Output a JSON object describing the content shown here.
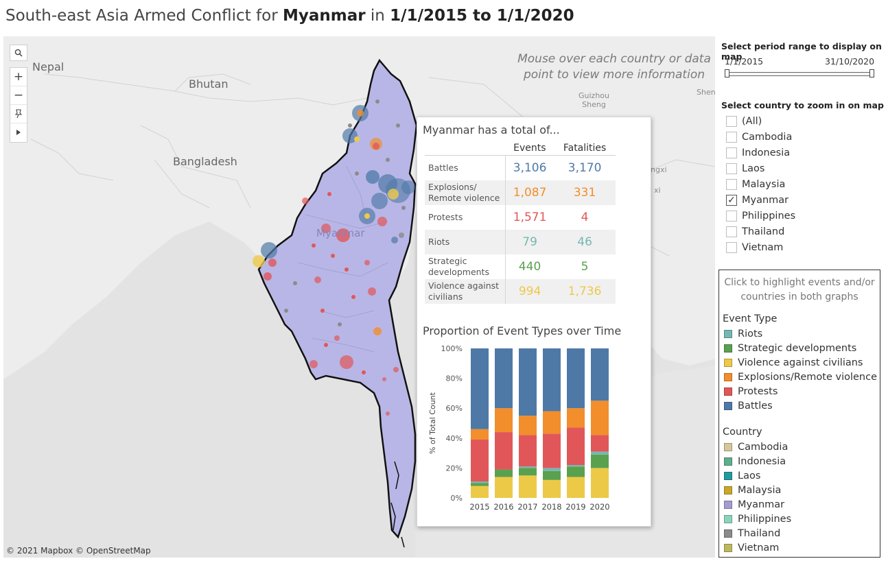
{
  "title": {
    "prefix": "South-east Asia Armed Conflict for ",
    "country": "Myanmar",
    "middle": " in ",
    "range": "1/1/2015 to 1/1/2020"
  },
  "map": {
    "hint": "Mouse over each country or data point to view more information",
    "attribution": "© 2021 Mapbox © OpenStreetMap",
    "labels": {
      "nepal": "Nepal",
      "bhutan": "Bhutan",
      "bangladesh": "Bangladesh",
      "myanmar": "Myanmar",
      "guizhou": "Guizhou\nSheng",
      "shen": "Shen",
      "ngxi": "ngxi",
      "xi": "xi"
    },
    "tools": [
      "search-icon",
      "zoom-in-icon",
      "zoom-out-icon",
      "pin-icon",
      "play-icon"
    ],
    "region_color": "#b8b6e6",
    "border_color": "#111111"
  },
  "info": {
    "title": "Myanmar has a total of...",
    "col_events": "Events",
    "col_fatalities": "Fatalities",
    "rows": [
      {
        "label1": "Battles",
        "label2": "",
        "events": "3,106",
        "fatalities": "3,170",
        "color": "#4e79a7"
      },
      {
        "label1": "Explosions/",
        "label2": "Remote violence",
        "events": "1,087",
        "fatalities": "331",
        "color": "#f28e2b"
      },
      {
        "label1": "Protests",
        "label2": "",
        "events": "1,571",
        "fatalities": "4",
        "color": "#e15759"
      },
      {
        "label1": "Riots",
        "label2": "",
        "events": "79",
        "fatalities": "46",
        "color": "#76b7b2"
      },
      {
        "label1": "Strategic",
        "label2": "developments",
        "events": "440",
        "fatalities": "5",
        "color": "#59a14f"
      },
      {
        "label1": "Violence against",
        "label2": "civilians",
        "events": "994",
        "fatalities": "1,736",
        "color": "#edc948"
      }
    ]
  },
  "chart_data": {
    "type": "bar",
    "stacked": true,
    "title": "Proportion of Event Types over Time",
    "ylabel": "% of Total Count",
    "xlabel": "",
    "ylim": [
      0,
      100
    ],
    "yticks": [
      "0%",
      "20%",
      "40%",
      "60%",
      "80%",
      "100%"
    ],
    "categories": [
      "2015",
      "2016",
      "2017",
      "2018",
      "2019",
      "2020"
    ],
    "series": [
      {
        "name": "Violence against civilians",
        "color": "#edc948",
        "values": [
          8,
          14,
          15,
          12,
          14,
          20
        ]
      },
      {
        "name": "Strategic developments",
        "color": "#59a14f",
        "values": [
          2,
          5,
          5,
          6,
          7,
          9
        ]
      },
      {
        "name": "Riots",
        "color": "#76b7b2",
        "values": [
          1,
          0,
          1,
          2,
          1,
          2
        ]
      },
      {
        "name": "Protests",
        "color": "#e15759",
        "values": [
          28,
          25,
          21,
          23,
          25,
          11
        ]
      },
      {
        "name": "Explosions/Remote violence",
        "color": "#f28e2b",
        "values": [
          7,
          16,
          13,
          15,
          13,
          23
        ]
      },
      {
        "name": "Battles",
        "color": "#4e79a7",
        "values": [
          54,
          40,
          45,
          42,
          40,
          35
        ]
      }
    ]
  },
  "period": {
    "title": "Select period range to display on map",
    "start": "1/1/2015",
    "end": "31/10/2020"
  },
  "country_filter": {
    "title": "Select country to zoom in on map",
    "options": [
      {
        "label": "(All)",
        "checked": false
      },
      {
        "label": "Cambodia",
        "checked": false
      },
      {
        "label": "Indonesia",
        "checked": false
      },
      {
        "label": "Laos",
        "checked": false
      },
      {
        "label": "Malaysia",
        "checked": false
      },
      {
        "label": "Myanmar",
        "checked": true
      },
      {
        "label": "Philippines",
        "checked": false
      },
      {
        "label": "Thailand",
        "checked": false
      },
      {
        "label": "Vietnam",
        "checked": false
      }
    ]
  },
  "legend": {
    "hint": "Click to highlight events and/or countries in both graphs",
    "event_title": "Event Type",
    "events": [
      {
        "label": "Riots",
        "color": "#76b7b2"
      },
      {
        "label": "Strategic developments",
        "color": "#59a14f"
      },
      {
        "label": "Violence against civilians",
        "color": "#edc948"
      },
      {
        "label": "Explosions/Remote violence",
        "color": "#f28e2b"
      },
      {
        "label": "Protests",
        "color": "#e15759"
      },
      {
        "label": "Battles",
        "color": "#4e79a7"
      }
    ],
    "country_title": "Country",
    "countries": [
      {
        "label": "Cambodia",
        "color": "#d4c79b"
      },
      {
        "label": "Indonesia",
        "color": "#5fae8b"
      },
      {
        "label": "Laos",
        "color": "#24999f"
      },
      {
        "label": "Malaysia",
        "color": "#c8a72b"
      },
      {
        "label": "Myanmar",
        "color": "#a39bd1"
      },
      {
        "label": "Philippines",
        "color": "#8cd3bd"
      },
      {
        "label": "Thailand",
        "color": "#8b8b8b"
      },
      {
        "label": "Vietnam",
        "color": "#bdb85e"
      }
    ]
  }
}
